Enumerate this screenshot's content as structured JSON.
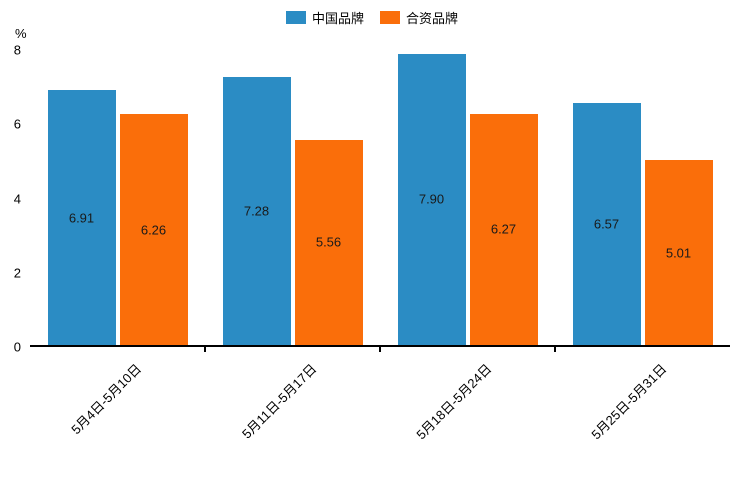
{
  "chart_data": {
    "type": "bar",
    "title": "",
    "categories": [
      "5月4日-5月10日",
      "5月11日-5月17日",
      "5月18日-5月24日",
      "5月25日-5月31日"
    ],
    "series": [
      {
        "name": "中国品牌",
        "color": "#2b8cc4",
        "values": [
          6.91,
          7.28,
          7.9,
          6.57
        ]
      },
      {
        "name": "合资品牌",
        "color": "#fa6e0a",
        "values": [
          6.26,
          5.56,
          6.27,
          5.01
        ]
      }
    ],
    "xlabel": "",
    "ylabel": "%",
    "ylim": [
      0,
      8
    ],
    "yticks": [
      0,
      2,
      4,
      6,
      8
    ],
    "legend_position": "top",
    "grid": false,
    "axis_color": "#000000",
    "value_label_color": "#1a1a1a"
  }
}
